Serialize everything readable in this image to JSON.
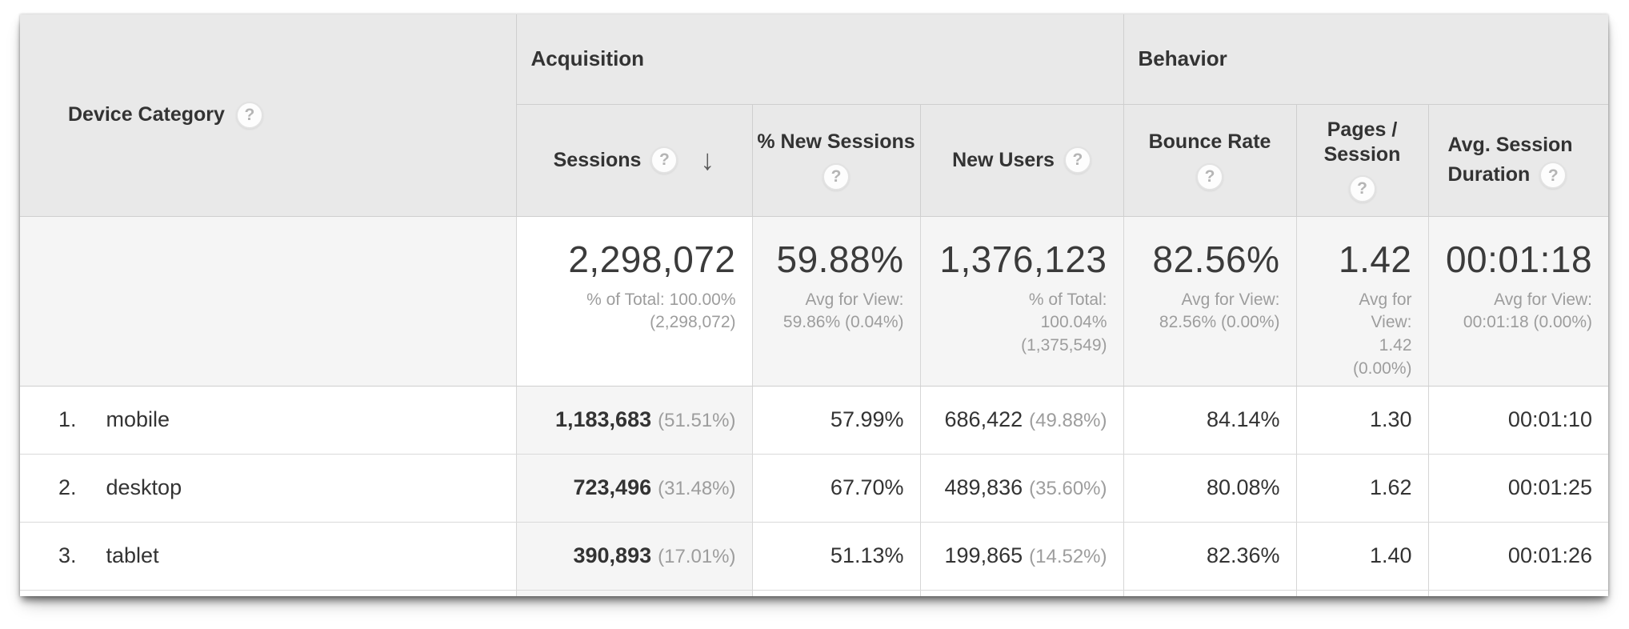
{
  "icons": {
    "help_glyph": "?",
    "sort_desc_glyph": "↓"
  },
  "colors": {
    "header_bg": "#e9e9e9",
    "summary_bg": "#f5f5f5",
    "sorted_column_bg": "#f5f5f5",
    "border": "#cfcfcf",
    "text_primary": "#333333",
    "text_secondary": "#9d9d9d"
  },
  "table": {
    "row_dimension": {
      "label": "Device Category"
    },
    "groups": {
      "acquisition": "Acquisition",
      "behavior": "Behavior"
    },
    "columns": {
      "sessions": "Sessions",
      "pct_new_sessions": "% New Sessions",
      "new_users": "New Users",
      "bounce_rate": "Bounce Rate",
      "pages_per_session": "Pages / Session",
      "avg_session_duration": "Avg. Session Duration"
    },
    "sort": {
      "column": "Sessions",
      "direction": "descending"
    },
    "summary": {
      "sessions": {
        "value": "2,298,072",
        "note": "% of Total: 100.00% (2,298,072)"
      },
      "pct_new_sessions": {
        "value": "59.88%",
        "note": "Avg for View: 59.86% (0.04%)"
      },
      "new_users": {
        "value": "1,376,123",
        "note": "% of Total: 100.04% (1,375,549)"
      },
      "bounce_rate": {
        "value": "82.56%",
        "note": "Avg for View: 82.56% (0.00%)"
      },
      "pages_per_session": {
        "value": "1.42",
        "note": "Avg for View: 1.42 (0.00%)"
      },
      "avg_session_duration": {
        "value": "00:01:18",
        "note": "Avg for View: 00:01:18 (0.00%)"
      }
    },
    "rows": [
      {
        "rank": "1.",
        "device": "mobile",
        "sessions": "1,183,683",
        "sessions_share": "(51.51%)",
        "pct_new_sessions": "57.99%",
        "new_users": "686,422",
        "new_users_share": "(49.88%)",
        "bounce_rate": "84.14%",
        "pages_per_session": "1.30",
        "avg_session_duration": "00:01:10"
      },
      {
        "rank": "2.",
        "device": "desktop",
        "sessions": "723,496",
        "sessions_share": "(31.48%)",
        "pct_new_sessions": "67.70%",
        "new_users": "489,836",
        "new_users_share": "(35.60%)",
        "bounce_rate": "80.08%",
        "pages_per_session": "1.62",
        "avg_session_duration": "00:01:25"
      },
      {
        "rank": "3.",
        "device": "tablet",
        "sessions": "390,893",
        "sessions_share": "(17.01%)",
        "pct_new_sessions": "51.13%",
        "new_users": "199,865",
        "new_users_share": "(14.52%)",
        "bounce_rate": "82.36%",
        "pages_per_session": "1.40",
        "avg_session_duration": "00:01:26"
      }
    ]
  }
}
